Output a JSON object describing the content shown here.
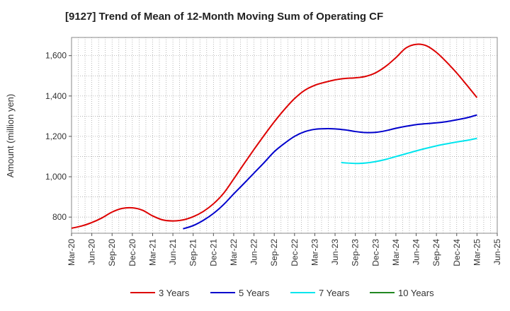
{
  "chart_data": {
    "type": "line",
    "title": "[9127]  Trend of Mean of 12-Month Moving Sum of Operating CF",
    "xlabel": "",
    "ylabel": "Amount (million yen)",
    "ylim": [
      720,
      1690
    ],
    "yticks": [
      800,
      1000,
      1200,
      1400,
      1600
    ],
    "ytick_labels": [
      "800",
      "1,000",
      "1,200",
      "1,400",
      "1,600"
    ],
    "categories": [
      "Mar-20",
      "Jun-20",
      "Sep-20",
      "Dec-20",
      "Mar-21",
      "Jun-21",
      "Sep-21",
      "Dec-21",
      "Mar-22",
      "Jun-22",
      "Sep-22",
      "Dec-22",
      "Mar-23",
      "Jun-23",
      "Sep-23",
      "Dec-23",
      "Mar-24",
      "Jun-24",
      "Sep-24",
      "Dec-24",
      "Mar-25",
      "Jun-25"
    ],
    "grid": true,
    "legend_position": "bottom",
    "series": [
      {
        "name": "3 Years",
        "color": "#dd0000",
        "points": [
          [
            0,
            745
          ],
          [
            0.5,
            756
          ],
          [
            1,
            773
          ],
          [
            1.5,
            796
          ],
          [
            2,
            825
          ],
          [
            2.5,
            843
          ],
          [
            3,
            846
          ],
          [
            3.5,
            834
          ],
          [
            4,
            806
          ],
          [
            4.5,
            786
          ],
          [
            5,
            781
          ],
          [
            5.5,
            786
          ],
          [
            6,
            802
          ],
          [
            6.5,
            828
          ],
          [
            7,
            866
          ],
          [
            7.5,
            918
          ],
          [
            8,
            989
          ],
          [
            8.5,
            1063
          ],
          [
            9,
            1135
          ],
          [
            9.5,
            1205
          ],
          [
            10,
            1272
          ],
          [
            10.5,
            1333
          ],
          [
            11,
            1387
          ],
          [
            11.5,
            1428
          ],
          [
            12,
            1453
          ],
          [
            12.5,
            1468
          ],
          [
            13,
            1480
          ],
          [
            13.5,
            1487
          ],
          [
            14,
            1490
          ],
          [
            14.5,
            1497
          ],
          [
            15,
            1515
          ],
          [
            15.5,
            1547
          ],
          [
            16,
            1590
          ],
          [
            16.5,
            1638
          ],
          [
            17,
            1656
          ],
          [
            17.5,
            1649
          ],
          [
            18,
            1616
          ],
          [
            18.5,
            1568
          ],
          [
            19,
            1514
          ],
          [
            19.5,
            1454
          ],
          [
            20,
            1392
          ]
        ]
      },
      {
        "name": "5 Years",
        "color": "#0000cc",
        "points": [
          [
            5.5,
            742
          ],
          [
            6,
            758
          ],
          [
            6.5,
            784
          ],
          [
            7,
            818
          ],
          [
            7.5,
            862
          ],
          [
            8,
            915
          ],
          [
            8.5,
            966
          ],
          [
            9,
            1018
          ],
          [
            9.5,
            1070
          ],
          [
            10,
            1124
          ],
          [
            10.5,
            1165
          ],
          [
            11,
            1200
          ],
          [
            11.5,
            1223
          ],
          [
            12,
            1235
          ],
          [
            12.5,
            1238
          ],
          [
            13,
            1237
          ],
          [
            13.5,
            1232
          ],
          [
            14,
            1224
          ],
          [
            14.5,
            1219
          ],
          [
            15,
            1220
          ],
          [
            15.5,
            1228
          ],
          [
            16,
            1240
          ],
          [
            16.5,
            1250
          ],
          [
            17,
            1258
          ],
          [
            17.5,
            1263
          ],
          [
            18,
            1267
          ],
          [
            18.5,
            1273
          ],
          [
            19,
            1282
          ],
          [
            19.5,
            1292
          ],
          [
            20,
            1306
          ]
        ]
      },
      {
        "name": "7 Years",
        "color": "#00e5ee",
        "points": [
          [
            13.3,
            1070
          ],
          [
            14,
            1066
          ],
          [
            14.5,
            1068
          ],
          [
            15,
            1075
          ],
          [
            15.5,
            1086
          ],
          [
            16,
            1100
          ],
          [
            16.5,
            1114
          ],
          [
            17,
            1128
          ],
          [
            17.5,
            1141
          ],
          [
            18,
            1153
          ],
          [
            18.5,
            1163
          ],
          [
            19,
            1172
          ],
          [
            19.5,
            1180
          ],
          [
            20,
            1190
          ]
        ]
      },
      {
        "name": "10 Years",
        "color": "#228822",
        "points": []
      }
    ]
  }
}
